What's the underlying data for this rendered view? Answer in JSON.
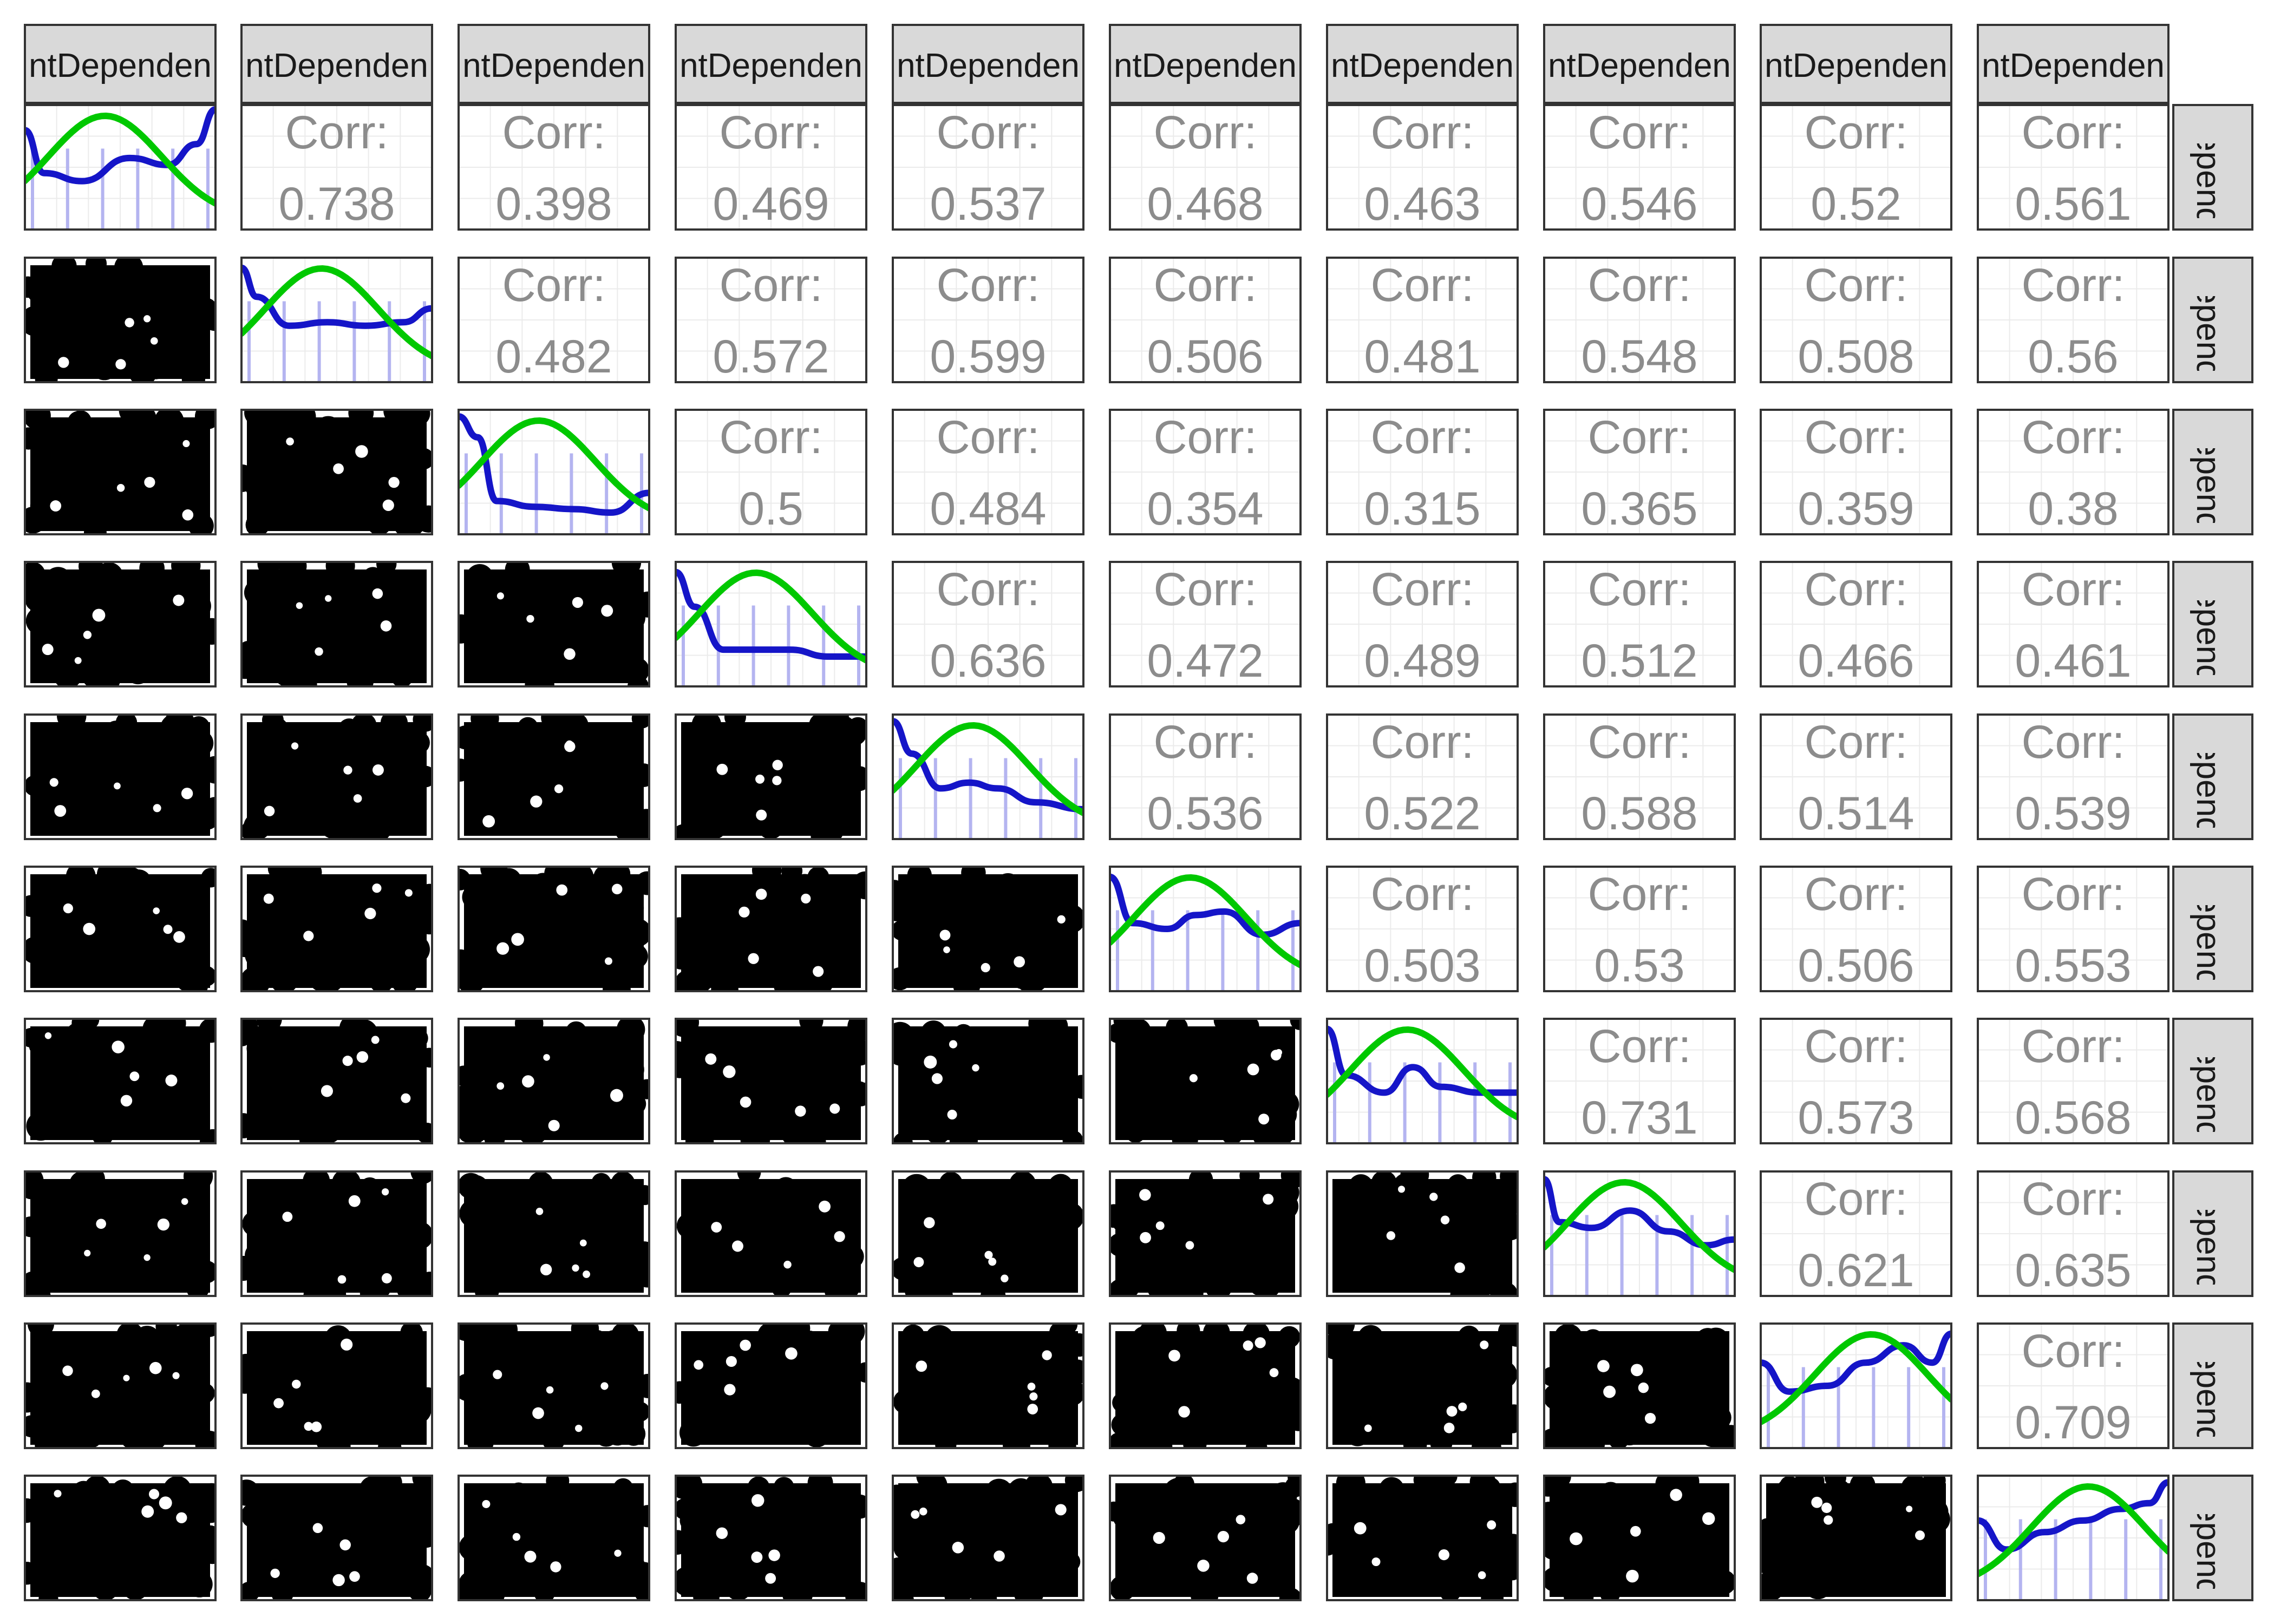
{
  "chart_data": {
    "type": "scatter-matrix",
    "variable_labels": [
      "ntDependen",
      "ntDependen",
      "ntDependen",
      "ntDependen",
      "ntDependen",
      "ntDependen",
      "ntDependen",
      "ntDependen",
      "ntDependen",
      "ntDependen"
    ],
    "row_strip_labels": [
      "Depend",
      "Depend",
      "Depend",
      "Depend",
      "Depend",
      "Depend",
      "Depend",
      "Depend",
      "Depend",
      "Depend"
    ],
    "corr_label": "Corr:",
    "correlations": [
      [
        "",
        "0.738",
        "0.398",
        "0.469",
        "0.537",
        "0.468",
        "0.463",
        "0.546",
        "0.52",
        "0.561"
      ],
      [
        "",
        "",
        "0.482",
        "0.572",
        "0.599",
        "0.506",
        "0.481",
        "0.548",
        "0.508",
        "0.56"
      ],
      [
        "",
        "",
        "",
        "0.5",
        "0.484",
        "0.354",
        "0.315",
        "0.365",
        "0.359",
        "0.38"
      ],
      [
        "",
        "",
        "",
        "",
        "0.636",
        "0.472",
        "0.489",
        "0.512",
        "0.466",
        "0.461"
      ],
      [
        "",
        "",
        "",
        "",
        "",
        "0.536",
        "0.522",
        "0.588",
        "0.514",
        "0.539"
      ],
      [
        "",
        "",
        "",
        "",
        "",
        "",
        "0.503",
        "0.53",
        "0.506",
        "0.553"
      ],
      [
        "",
        "",
        "",
        "",
        "",
        "",
        "",
        "0.731",
        "0.573",
        "0.568"
      ],
      [
        "",
        "",
        "",
        "",
        "",
        "",
        "",
        "",
        "0.621",
        "0.635"
      ],
      [
        "",
        "",
        "",
        "",
        "",
        "",
        "",
        "",
        "",
        "0.709"
      ],
      [
        "",
        "",
        "",
        "",
        "",
        "",
        "",
        "",
        "",
        ""
      ]
    ],
    "density_series_colors": {
      "empirical_density": "#1515c8",
      "normal_fit": "#00c800",
      "histogram_bars": "#b4b4f0"
    },
    "scatter_point_color": "#000000",
    "panel_border_color": "#333333",
    "strip_fill_color": "#d9d9d9",
    "grid": true
  }
}
